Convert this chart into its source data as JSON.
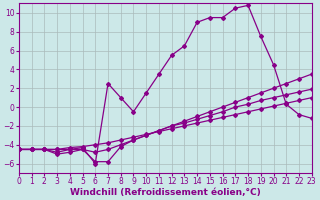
{
  "background_color": "#cce8e8",
  "grid_color": "#aabbbb",
  "line_color": "#880088",
  "xlim": [
    0,
    23
  ],
  "ylim": [
    -7,
    11
  ],
  "xlabel": "Windchill (Refroidissement éolien,°C)",
  "xticks": [
    0,
    1,
    2,
    3,
    4,
    5,
    6,
    7,
    8,
    9,
    10,
    11,
    12,
    13,
    14,
    15,
    16,
    17,
    18,
    19,
    20,
    21,
    22,
    23
  ],
  "yticks": [
    -6,
    -4,
    -2,
    0,
    2,
    4,
    6,
    8,
    10
  ],
  "line1_x": [
    0,
    1,
    2,
    3,
    4,
    5,
    6,
    7,
    8,
    9,
    10,
    11,
    12,
    13,
    14,
    15,
    16,
    17,
    18,
    19,
    20,
    21,
    22,
    23
  ],
  "line1_y": [
    -4.5,
    -4.5,
    -4.5,
    -4.5,
    -4.5,
    -4.5,
    -4.8,
    -4.5,
    -4.0,
    -3.5,
    -3.0,
    -2.5,
    -2.0,
    -1.5,
    -1.0,
    -0.5,
    0.0,
    0.5,
    1.0,
    1.5,
    2.0,
    2.5,
    3.0,
    3.5
  ],
  "line2_x": [
    0,
    1,
    2,
    3,
    4,
    5,
    6,
    7,
    8,
    9,
    10,
    11,
    12,
    13,
    14,
    15,
    16,
    17,
    18,
    19,
    20,
    21,
    22,
    23
  ],
  "line2_y": [
    -4.5,
    -4.5,
    -4.5,
    -4.8,
    -4.5,
    -4.3,
    -6.0,
    2.5,
    1.0,
    -0.5,
    1.5,
    3.5,
    5.5,
    6.5,
    9.0,
    9.5,
    9.5,
    10.5,
    10.8,
    7.5,
    4.5,
    0.3,
    -0.8,
    -1.2
  ],
  "line3_x": [
    0,
    1,
    2,
    3,
    4,
    5,
    6,
    7,
    8,
    9,
    10,
    11,
    12,
    13,
    14,
    15,
    16,
    17,
    18,
    19,
    20,
    21,
    22,
    23
  ],
  "line3_y": [
    -4.5,
    -4.5,
    -4.5,
    -5.0,
    -4.8,
    -4.5,
    -5.8,
    -5.8,
    -4.2,
    -3.5,
    -3.0,
    -2.5,
    -2.0,
    -1.7,
    -1.3,
    -0.9,
    -0.5,
    0.0,
    0.3,
    0.7,
    1.0,
    1.3,
    1.6,
    1.9
  ],
  "line4_x": [
    0,
    1,
    2,
    3,
    4,
    5,
    6,
    7,
    8,
    9,
    10,
    11,
    12,
    13,
    14,
    15,
    16,
    17,
    18,
    19,
    20,
    21,
    22,
    23
  ],
  "line4_y": [
    -4.5,
    -4.5,
    -4.5,
    -4.5,
    -4.3,
    -4.2,
    -4.0,
    -3.8,
    -3.5,
    -3.2,
    -2.9,
    -2.6,
    -2.3,
    -2.0,
    -1.7,
    -1.4,
    -1.1,
    -0.8,
    -0.5,
    -0.2,
    0.1,
    0.4,
    0.7,
    1.0
  ],
  "marker": "D",
  "markersize": 2.0,
  "linewidth": 0.9,
  "xlabel_fontsize": 6.5,
  "tick_fontsize": 5.5
}
